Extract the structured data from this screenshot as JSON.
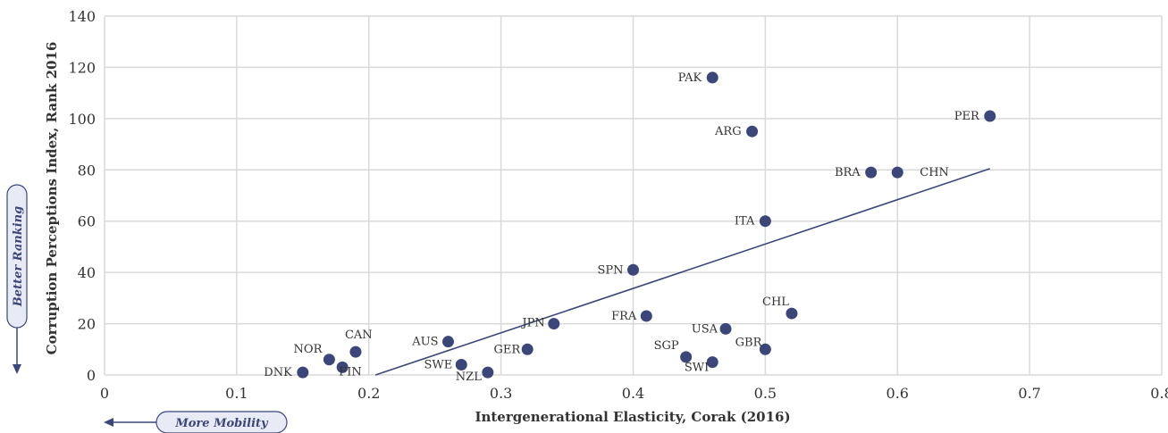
{
  "chart_data": {
    "type": "scatter",
    "xlabel": "Intergenerational Elasticity, Corak (2016)",
    "ylabel": "Corruption Perceptions Index, Rank 2016",
    "xlim": [
      0,
      0.8
    ],
    "ylim": [
      0,
      140
    ],
    "x_ticks": [
      "0",
      "0.1",
      "0.2",
      "0.3",
      "0.4",
      "0.5",
      "0.6",
      "0.7",
      "0.8"
    ],
    "y_ticks": [
      "0",
      "20",
      "40",
      "60",
      "80",
      "100",
      "120",
      "140"
    ],
    "grid": true,
    "marker_color": "#3b4679",
    "points": [
      {
        "label": "DNK",
        "x": 0.15,
        "y": 1
      },
      {
        "label": "NOR",
        "x": 0.17,
        "y": 6
      },
      {
        "label": "FIN",
        "x": 0.18,
        "y": 3
      },
      {
        "label": "CAN",
        "x": 0.19,
        "y": 9
      },
      {
        "label": "AUS",
        "x": 0.26,
        "y": 13
      },
      {
        "label": "SWE",
        "x": 0.27,
        "y": 4
      },
      {
        "label": "NZL",
        "x": 0.29,
        "y": 1
      },
      {
        "label": "GER",
        "x": 0.32,
        "y": 10
      },
      {
        "label": "JPN",
        "x": 0.34,
        "y": 20
      },
      {
        "label": "SPN",
        "x": 0.4,
        "y": 41
      },
      {
        "label": "FRA",
        "x": 0.41,
        "y": 23
      },
      {
        "label": "SGP",
        "x": 0.44,
        "y": 7
      },
      {
        "label": "SWI",
        "x": 0.46,
        "y": 5
      },
      {
        "label": "PAK",
        "x": 0.46,
        "y": 116
      },
      {
        "label": "USA",
        "x": 0.47,
        "y": 18
      },
      {
        "label": "ARG",
        "x": 0.49,
        "y": 95
      },
      {
        "label": "ITA",
        "x": 0.5,
        "y": 60
      },
      {
        "label": "GBR",
        "x": 0.5,
        "y": 10
      },
      {
        "label": "CHL",
        "x": 0.52,
        "y": 24
      },
      {
        "label": "BRA",
        "x": 0.58,
        "y": 79
      },
      {
        "label": "CHN",
        "x": 0.6,
        "y": 79
      },
      {
        "label": "PER",
        "x": 0.67,
        "y": 101
      }
    ],
    "trendline": {
      "x": [
        0.205,
        0.67
      ],
      "y": [
        0,
        80.5
      ]
    },
    "annotations": {
      "y_hint": "Better Ranking",
      "x_hint": "More Mobility"
    }
  }
}
